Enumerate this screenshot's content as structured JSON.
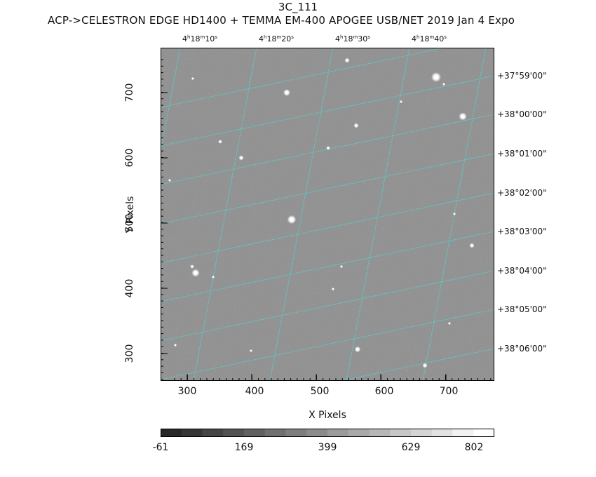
{
  "title": "3C_111",
  "subtitle": "ACP->CELESTRON EDGE HD1400 + TEMMA EM-400 APOGEE USB/NET   2019 Jan  4    Expo",
  "x_axis": {
    "label": "X Pixels",
    "ticks": [
      "300",
      "400",
      "500",
      "600",
      "700"
    ]
  },
  "y_axis": {
    "label": "Y Pixels",
    "ticks": [
      "700",
      "600",
      "500",
      "400",
      "300"
    ]
  },
  "ra_labels": [
    {
      "h": "4",
      "m": "18",
      "s": "10"
    },
    {
      "h": "4",
      "m": "18",
      "s": "20"
    },
    {
      "h": "4",
      "m": "18",
      "s": "30"
    },
    {
      "h": "4",
      "m": "18",
      "s": "40"
    }
  ],
  "ra_units": {
    "h": "h",
    "m": "m",
    "s": "s"
  },
  "dec_labels": [
    "+37°59'00\"",
    "+38°00'00\"",
    "+38°01'00\"",
    "+38°02'00\"",
    "+38°03'00\"",
    "+38°04'00\"",
    "+38°05'00\"",
    "+38°06'00\""
  ],
  "colorbar": {
    "ticks": [
      "-61",
      "169",
      "399",
      "629",
      "802"
    ]
  },
  "colors": {
    "sky_background": "#8e8e8e",
    "grid_line": "#4fd6d6",
    "star": "#ffffff",
    "frame": "#000000"
  },
  "image_description_layers": "grayscale star field with cyan WCS coordinate grid"
}
